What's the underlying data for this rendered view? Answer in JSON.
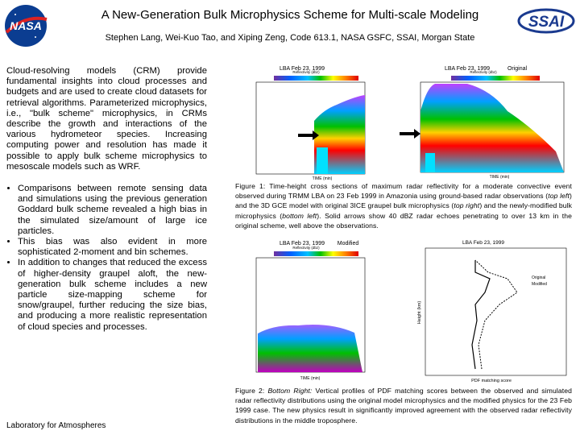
{
  "header": {
    "title": "A New-Generation Bulk Microphysics Scheme for Multi-scale Modeling",
    "authors": "Stephen Lang, Wei-Kuo Tao, and Xiping Zeng, Code 613.1, NASA GSFC, SSAI, Morgan State",
    "logo_left": "NASA",
    "logo_right": "SSAI"
  },
  "body": {
    "intro": "Cloud-resolving models (CRM) provide fundamental insights into cloud processes and budgets and are used to create cloud datasets for retrieval algorithms. Parameterized microphysics, i.e., \"bulk scheme\" microphysics, in CRMs describe the growth and interactions of the various hydrometeor species. Increasing computing power and resolution has made it possible to apply bulk scheme microphysics to mesoscale models such as WRF.",
    "bullets": [
      "Comparisons between remote sensing data and simulations using the previous generation Goddard bulk scheme revealed a high bias in the simulated size/amount of large ice particles.",
      "This bias was also evident in more sophisticated 2-moment and bin schemes.",
      "In addition to changes that reduced the excess of higher-density graupel aloft, the new-generation bulk scheme includes a new particle size-mapping scheme for snow/graupel, further reducing the size bias, and producing a more realistic representation of cloud species and processes."
    ]
  },
  "footer": "Laboratory for Atmospheres",
  "figure1": {
    "panels": [
      {
        "title": "LBA Feb 23, 1999",
        "subtitle": "Reflectivity (dbz)",
        "xlabel": "TIME (min)"
      },
      {
        "title": "LBA Feb 23, 1999",
        "tag": "Original",
        "subtitle": "Reflectivity (dbz)",
        "xlabel": "TIME (min)"
      },
      {
        "title": "LBA Feb 23, 1999",
        "tag": "Modified",
        "subtitle": "Reflectivity (dbz)",
        "xlabel": "TIME (min)"
      }
    ],
    "caption": [
      "Figure 1:  Time-height cross sections of maximum radar reflectivity for a moderate convective event observed during TRMM LBA on 23 Feb 1999 in Amazonia using ground-based radar observations (",
      "top left",
      ") and the 3D GCE model with original 3ICE graupel bulk microphysics (",
      "top right",
      ") and the newly-modified bulk microphysics (",
      "bottom left",
      "). Solid arrows show 40 dBZ radar echoes penetrating to over 13 km in the original scheme, well above the observations."
    ]
  },
  "figure2": {
    "title": "LBA Feb 23, 1999",
    "xlabel": "PDF matching score",
    "ylabel": "Height (km)",
    "legend": [
      "Original",
      "Modified"
    ],
    "caption": [
      "Figure 2: ",
      "Bottom Right:",
      " Vertical profiles of PDF matching scores between the observed and simulated radar reflectivity distributions using the original model microphysics and the modified physics for the 23 Feb 1999 case.  The new physics result in significantly improved agreement with the observed radar reflectivity distributions in the middle troposphere."
    ]
  }
}
